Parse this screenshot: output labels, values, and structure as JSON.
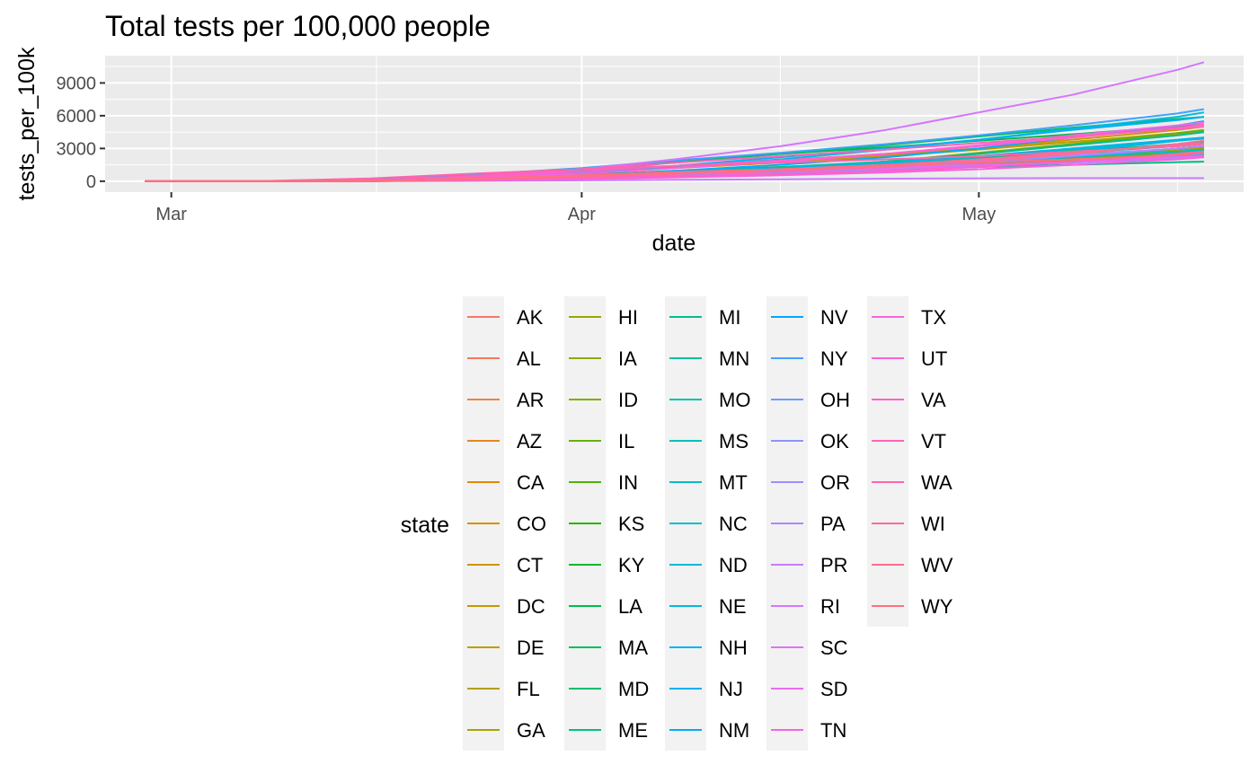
{
  "chart_data": {
    "type": "line",
    "title": "Total tests per 100,000 people",
    "xlabel": "date",
    "ylabel": "tests_per_100k",
    "x_tick_labels": [
      "Mar",
      "Apr",
      "May"
    ],
    "x_tick_dates": [
      "2020-03-01",
      "2020-04-01",
      "2020-05-01"
    ],
    "xlim": [
      "2020-02-25",
      "2020-05-21"
    ],
    "ylim": [
      -1000,
      11500
    ],
    "y_ticks": [
      0,
      3000,
      6000,
      9000
    ],
    "y_tick_labels": [
      "0",
      "3000",
      "6000",
      "9000"
    ],
    "grid": true,
    "legend": {
      "title": "state",
      "position": "bottom",
      "columns": 5,
      "rows": 11
    },
    "x": [
      "2020-02-28",
      "2020-03-08",
      "2020-03-16",
      "2020-03-24",
      "2020-04-01",
      "2020-04-08",
      "2020-04-16",
      "2020-04-24",
      "2020-05-01",
      "2020-05-08",
      "2020-05-16",
      "2020-05-18"
    ],
    "series": [
      {
        "name": "AK",
        "values": [
          0,
          5,
          40,
          220,
          480,
          800,
          1200,
          1800,
          2500,
          3300,
          4200,
          4500
        ]
      },
      {
        "name": "AL",
        "values": [
          0,
          2,
          20,
          120,
          330,
          600,
          950,
          1300,
          1700,
          2200,
          2800,
          3000
        ]
      },
      {
        "name": "AR",
        "values": [
          0,
          3,
          25,
          140,
          370,
          650,
          1000,
          1400,
          1800,
          2300,
          2900,
          3100
        ]
      },
      {
        "name": "AZ",
        "values": [
          0,
          2,
          20,
          100,
          260,
          450,
          700,
          1000,
          1400,
          1900,
          2600,
          2800
        ]
      },
      {
        "name": "CA",
        "values": [
          0,
          3,
          30,
          120,
          300,
          550,
          900,
          1300,
          1800,
          2300,
          2900,
          3100
        ]
      },
      {
        "name": "CO",
        "values": [
          0,
          5,
          40,
          180,
          400,
          650,
          950,
          1300,
          1700,
          2200,
          2800,
          3000
        ]
      },
      {
        "name": "CT",
        "values": [
          0,
          4,
          60,
          300,
          750,
          1300,
          1900,
          2500,
          3000,
          3600,
          4300,
          4500
        ]
      },
      {
        "name": "DC",
        "values": [
          0,
          6,
          70,
          350,
          800,
          1300,
          1800,
          2400,
          3000,
          3800,
          4700,
          5000
        ]
      },
      {
        "name": "DE",
        "values": [
          0,
          3,
          50,
          280,
          700,
          1200,
          1700,
          2300,
          2900,
          3600,
          4400,
          4600
        ]
      },
      {
        "name": "FL",
        "values": [
          0,
          3,
          30,
          200,
          450,
          750,
          1000,
          1300,
          1700,
          2100,
          2600,
          2800
        ]
      },
      {
        "name": "GA",
        "values": [
          0,
          2,
          20,
          120,
          300,
          500,
          800,
          1200,
          1700,
          2200,
          2800,
          3000
        ]
      },
      {
        "name": "HI",
        "values": [
          0,
          4,
          40,
          250,
          600,
          950,
          1300,
          1700,
          2100,
          2500,
          2900,
          3000
        ]
      },
      {
        "name": "IA",
        "values": [
          0,
          2,
          30,
          150,
          350,
          600,
          900,
          1400,
          2000,
          2800,
          3700,
          4000
        ]
      },
      {
        "name": "ID",
        "values": [
          0,
          2,
          30,
          200,
          450,
          700,
          950,
          1200,
          1500,
          1800,
          2200,
          2300
        ]
      },
      {
        "name": "IL",
        "values": [
          0,
          3,
          30,
          200,
          450,
          800,
          1200,
          1800,
          2600,
          3400,
          4400,
          4700
        ]
      },
      {
        "name": "IN",
        "values": [
          0,
          2,
          20,
          130,
          320,
          550,
          850,
          1200,
          1600,
          2000,
          2500,
          2600
        ]
      },
      {
        "name": "KS",
        "values": [
          0,
          2,
          20,
          100,
          250,
          450,
          700,
          1000,
          1400,
          1800,
          2300,
          2400
        ]
      },
      {
        "name": "KY",
        "values": [
          0,
          2,
          15,
          100,
          250,
          450,
          700,
          1100,
          1600,
          2200,
          3000,
          3200
        ]
      },
      {
        "name": "LA",
        "values": [
          0,
          3,
          40,
          450,
          1100,
          1800,
          2500,
          3100,
          3700,
          4300,
          5000,
          5200
        ]
      },
      {
        "name": "MA",
        "values": [
          0,
          4,
          60,
          400,
          1000,
          1700,
          2500,
          3300,
          4100,
          4900,
          5700,
          5900
        ]
      },
      {
        "name": "MD",
        "values": [
          0,
          2,
          20,
          150,
          400,
          700,
          1100,
          1600,
          2100,
          2700,
          3400,
          3600
        ]
      },
      {
        "name": "ME",
        "values": [
          0,
          3,
          30,
          200,
          450,
          700,
          900,
          1100,
          1300,
          1500,
          1750,
          1800
        ]
      },
      {
        "name": "MI",
        "values": [
          0,
          2,
          30,
          200,
          500,
          850,
          1300,
          1800,
          2500,
          3300,
          4200,
          4500
        ]
      },
      {
        "name": "MN",
        "values": [
          0,
          3,
          40,
          220,
          450,
          700,
          900,
          1300,
          1800,
          2500,
          3400,
          3700
        ]
      },
      {
        "name": "MO",
        "values": [
          0,
          2,
          20,
          120,
          300,
          550,
          850,
          1200,
          1600,
          2200,
          3000,
          3200
        ]
      },
      {
        "name": "MS",
        "values": [
          0,
          2,
          20,
          150,
          400,
          700,
          1100,
          1600,
          2200,
          2900,
          3700,
          3900
        ]
      },
      {
        "name": "MT",
        "values": [
          0,
          3,
          40,
          250,
          550,
          850,
          1200,
          1500,
          1800,
          2200,
          2700,
          2900
        ]
      },
      {
        "name": "NC",
        "values": [
          0,
          2,
          20,
          150,
          350,
          600,
          850,
          1100,
          1400,
          1800,
          2300,
          2500
        ]
      },
      {
        "name": "ND",
        "values": [
          0,
          5,
          60,
          350,
          800,
          1300,
          2000,
          2900,
          3800,
          4800,
          5900,
          6300
        ]
      },
      {
        "name": "NE",
        "values": [
          0,
          2,
          20,
          120,
          300,
          550,
          850,
          1300,
          1900,
          2700,
          3700,
          4000
        ]
      },
      {
        "name": "NH",
        "values": [
          0,
          3,
          40,
          250,
          550,
          850,
          1200,
          1700,
          2300,
          3000,
          3800,
          4000
        ]
      },
      {
        "name": "NJ",
        "values": [
          0,
          3,
          40,
          300,
          800,
          1400,
          2200,
          3000,
          3800,
          4700,
          5600,
          5900
        ]
      },
      {
        "name": "NM",
        "values": [
          0,
          3,
          40,
          250,
          550,
          950,
          1500,
          2200,
          3000,
          4000,
          5100,
          5500
        ]
      },
      {
        "name": "NV",
        "values": [
          0,
          2,
          30,
          200,
          450,
          750,
          1100,
          1500,
          2000,
          2600,
          3200,
          3400
        ]
      },
      {
        "name": "NY",
        "values": [
          0,
          5,
          150,
          600,
          1200,
          1900,
          2600,
          3400,
          4200,
          5100,
          6200,
          6600
        ]
      },
      {
        "name": "OH",
        "values": [
          0,
          2,
          20,
          100,
          250,
          450,
          700,
          1000,
          1300,
          1700,
          2200,
          2400
        ]
      },
      {
        "name": "OK",
        "values": [
          0,
          2,
          20,
          120,
          300,
          500,
          800,
          1200,
          1700,
          2300,
          3000,
          3200
        ]
      },
      {
        "name": "OR",
        "values": [
          0,
          3,
          30,
          170,
          380,
          600,
          850,
          1100,
          1400,
          1700,
          2100,
          2200
        ]
      },
      {
        "name": "PA",
        "values": [
          0,
          2,
          30,
          200,
          500,
          800,
          1100,
          1500,
          1900,
          2400,
          3000,
          3200
        ]
      },
      {
        "name": "PR",
        "values": [
          0,
          1,
          10,
          40,
          80,
          130,
          180,
          230,
          270,
          280,
          280,
          280
        ]
      },
      {
        "name": "RI",
        "values": [
          0,
          5,
          80,
          450,
          1100,
          2000,
          3200,
          4700,
          6300,
          7900,
          10200,
          10900
        ]
      },
      {
        "name": "SC",
        "values": [
          0,
          2,
          20,
          120,
          280,
          450,
          650,
          900,
          1300,
          1800,
          2400,
          2600
        ]
      },
      {
        "name": "SD",
        "values": [
          0,
          3,
          30,
          200,
          450,
          700,
          950,
          1200,
          1500,
          1800,
          2200,
          2300
        ]
      },
      {
        "name": "TN",
        "values": [
          0,
          3,
          40,
          300,
          700,
          1200,
          1800,
          2500,
          3300,
          4200,
          5100,
          5400
        ]
      },
      {
        "name": "TX",
        "values": [
          0,
          2,
          15,
          80,
          200,
          350,
          550,
          800,
          1100,
          1500,
          2000,
          2200
        ]
      },
      {
        "name": "UT",
        "values": [
          0,
          4,
          60,
          400,
          900,
          1400,
          1900,
          2500,
          3200,
          4000,
          4900,
          5200
        ]
      },
      {
        "name": "VA",
        "values": [
          0,
          2,
          15,
          100,
          250,
          450,
          650,
          950,
          1300,
          1800,
          2500,
          2700
        ]
      },
      {
        "name": "VT",
        "values": [
          0,
          4,
          70,
          500,
          1100,
          1700,
          2300,
          2900,
          3500,
          4100,
          4800,
          5000
        ]
      },
      {
        "name": "WA",
        "values": [
          0,
          20,
          250,
          700,
          1100,
          1400,
          1700,
          2000,
          2300,
          2700,
          3200,
          3400
        ]
      },
      {
        "name": "WI",
        "values": [
          0,
          2,
          20,
          150,
          400,
          650,
          900,
          1300,
          1800,
          2500,
          3400,
          3700
        ]
      },
      {
        "name": "WV",
        "values": [
          0,
          2,
          30,
          200,
          450,
          750,
          1100,
          1500,
          2000,
          2600,
          3300,
          3500
        ]
      },
      {
        "name": "WY",
        "values": [
          0,
          3,
          40,
          250,
          550,
          850,
          1100,
          1400,
          1700,
          2000,
          2400,
          2600
        ]
      }
    ]
  }
}
